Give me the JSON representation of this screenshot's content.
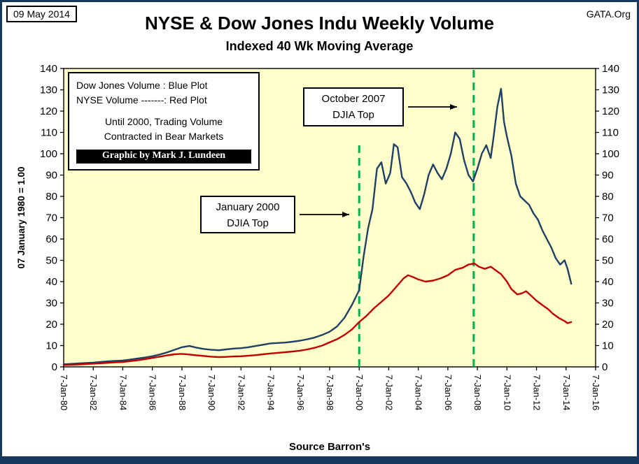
{
  "header": {
    "date": "09 May 2014",
    "site": "GATA.Org"
  },
  "legend": {
    "line1": "Dow Jones Volume : Blue Plot",
    "line2": "NYSE Volume -------: Red Plot",
    "note1": "Until 2000, Trading Volume",
    "note2": "Contracted in Bear Markets",
    "credit": "Graphic by Mark J. Lundeen"
  },
  "annotations": [
    {
      "line1": "October 2007",
      "line2": "DJIA Top"
    },
    {
      "line1": "January 2000",
      "line2": "DJIA Top"
    }
  ],
  "chart_data": {
    "type": "line",
    "title": "NYSE & Dow Jones Indu Weekly Volume",
    "subtitle": "Indexed 40 Wk Moving Average",
    "ylabel": "07 January 1980 = 1.00",
    "source": "Source Barron's",
    "x_range": [
      1980,
      2016
    ],
    "ylim": [
      0,
      140
    ],
    "y_ticks": [
      0,
      10,
      20,
      30,
      40,
      50,
      60,
      70,
      80,
      90,
      100,
      110,
      120,
      130,
      140
    ],
    "x_tick_labels": [
      "7-Jan-80",
      "7-Jan-82",
      "7-Jan-84",
      "7-Jan-86",
      "7-Jan-88",
      "7-Jan-90",
      "7-Jan-92",
      "7-Jan-94",
      "7-Jan-96",
      "7-Jan-98",
      "7-Jan-00",
      "7-Jan-02",
      "7-Jan-04",
      "7-Jan-06",
      "7-Jan-08",
      "7-Jan-10",
      "7-Jan-12",
      "7-Jan-14",
      "7-Jan-16"
    ],
    "grid": false,
    "legend_position": "top-left",
    "plot_bg": "#FFFFCC",
    "vlines": [
      {
        "x_year": 2000.0,
        "y_from": 0,
        "y_to": 106,
        "color": "#00B050",
        "style": "dashed",
        "label": "January 2000 DJIA Top"
      },
      {
        "x_year": 2007.75,
        "y_from": 0,
        "y_to": 140,
        "color": "#00B050",
        "style": "dashed",
        "label": "October 2007 DJIA Top"
      }
    ],
    "series": [
      {
        "name": "Dow Jones Volume",
        "color": "#1F4065",
        "x": [
          1980.0,
          1980.5,
          1981.0,
          1981.5,
          1982.0,
          1982.5,
          1983.0,
          1983.5,
          1984.0,
          1984.5,
          1985.0,
          1985.5,
          1986.0,
          1986.5,
          1987.0,
          1987.5,
          1988.0,
          1988.5,
          1989.0,
          1989.5,
          1990.0,
          1990.5,
          1991.0,
          1991.5,
          1992.0,
          1992.5,
          1993.0,
          1993.5,
          1994.0,
          1994.5,
          1995.0,
          1995.5,
          1996.0,
          1996.5,
          1997.0,
          1997.5,
          1998.0,
          1998.5,
          1999.0,
          1999.5,
          2000.0,
          2000.3,
          2000.6,
          2000.9,
          2001.2,
          2001.5,
          2001.8,
          2002.1,
          2002.35,
          2002.6,
          2002.9,
          2003.2,
          2003.5,
          2003.8,
          2004.1,
          2004.4,
          2004.7,
          2005.0,
          2005.3,
          2005.6,
          2005.9,
          2006.2,
          2006.5,
          2006.8,
          2007.1,
          2007.4,
          2007.7,
          2008.0,
          2008.3,
          2008.6,
          2008.9,
          2009.1,
          2009.35,
          2009.6,
          2009.8,
          2010.0,
          2010.3,
          2010.6,
          2010.9,
          2011.2,
          2011.5,
          2011.8,
          2012.1,
          2012.4,
          2012.7,
          2013.0,
          2013.3,
          2013.6,
          2013.9,
          2014.1,
          2014.35
        ],
        "values": [
          1.2,
          1.4,
          1.6,
          1.8,
          2.0,
          2.3,
          2.6,
          2.8,
          3.0,
          3.4,
          3.9,
          4.4,
          5.0,
          5.8,
          6.8,
          8.0,
          9.2,
          9.8,
          9.0,
          8.4,
          8.0,
          7.8,
          8.2,
          8.6,
          8.8,
          9.2,
          9.8,
          10.4,
          11.0,
          11.2,
          11.4,
          11.8,
          12.3,
          13.0,
          13.8,
          15.0,
          16.5,
          19.0,
          23.0,
          29.0,
          36.0,
          52.0,
          65.0,
          74.0,
          93.0,
          96.0,
          86.0,
          91.0,
          104.5,
          103.0,
          89.0,
          86.0,
          82.0,
          77.0,
          74.0,
          81.0,
          90.0,
          95.0,
          91.0,
          88.0,
          93.0,
          100.0,
          110.0,
          107.0,
          97.0,
          90.0,
          87.0,
          93.0,
          100.0,
          104.0,
          98.0,
          108.0,
          122.0,
          130.5,
          115.0,
          108.0,
          99.0,
          86.0,
          80.0,
          78.0,
          76.0,
          72.0,
          69.0,
          64.0,
          60.0,
          56.0,
          51.0,
          48.0,
          50.0,
          46.0,
          39.0
        ]
      },
      {
        "name": "NYSE Volume",
        "color": "#C00000",
        "x": [
          1980.0,
          1980.5,
          1981.0,
          1981.5,
          1982.0,
          1982.5,
          1983.0,
          1983.5,
          1984.0,
          1984.5,
          1985.0,
          1985.5,
          1986.0,
          1986.5,
          1987.0,
          1987.5,
          1988.0,
          1988.5,
          1989.0,
          1989.5,
          1990.0,
          1990.5,
          1991.0,
          1991.5,
          1992.0,
          1992.5,
          1993.0,
          1993.5,
          1994.0,
          1994.5,
          1995.0,
          1995.5,
          1996.0,
          1996.5,
          1997.0,
          1997.5,
          1998.0,
          1998.5,
          1999.0,
          1999.5,
          2000.0,
          2000.5,
          2001.0,
          2001.5,
          2002.0,
          2002.5,
          2003.0,
          2003.3,
          2003.7,
          2004.0,
          2004.5,
          2005.0,
          2005.5,
          2006.0,
          2006.5,
          2007.0,
          2007.4,
          2007.8,
          2008.1,
          2008.5,
          2008.9,
          2009.2,
          2009.6,
          2010.0,
          2010.3,
          2010.7,
          2011.0,
          2011.3,
          2011.7,
          2012.0,
          2012.4,
          2012.8,
          2013.1,
          2013.5,
          2013.9,
          2014.1,
          2014.35
        ],
        "values": [
          0.9,
          1.0,
          1.1,
          1.3,
          1.5,
          1.7,
          1.9,
          2.1,
          2.3,
          2.7,
          3.1,
          3.6,
          4.2,
          4.8,
          5.4,
          5.9,
          6.1,
          5.8,
          5.4,
          5.1,
          4.8,
          4.6,
          4.7,
          4.9,
          5.0,
          5.2,
          5.5,
          5.9,
          6.3,
          6.6,
          6.9,
          7.2,
          7.6,
          8.2,
          9.0,
          10.0,
          11.5,
          13.0,
          15.0,
          17.5,
          21.0,
          24.0,
          27.5,
          30.5,
          33.5,
          37.5,
          41.5,
          43.0,
          42.0,
          41.0,
          40.0,
          40.5,
          41.5,
          43.0,
          45.5,
          46.5,
          48.0,
          48.5,
          47.0,
          46.0,
          47.0,
          45.5,
          43.5,
          40.0,
          36.5,
          34.0,
          34.5,
          35.5,
          33.0,
          31.0,
          29.0,
          27.0,
          25.0,
          23.0,
          21.5,
          20.5,
          21.0
        ]
      }
    ]
  }
}
